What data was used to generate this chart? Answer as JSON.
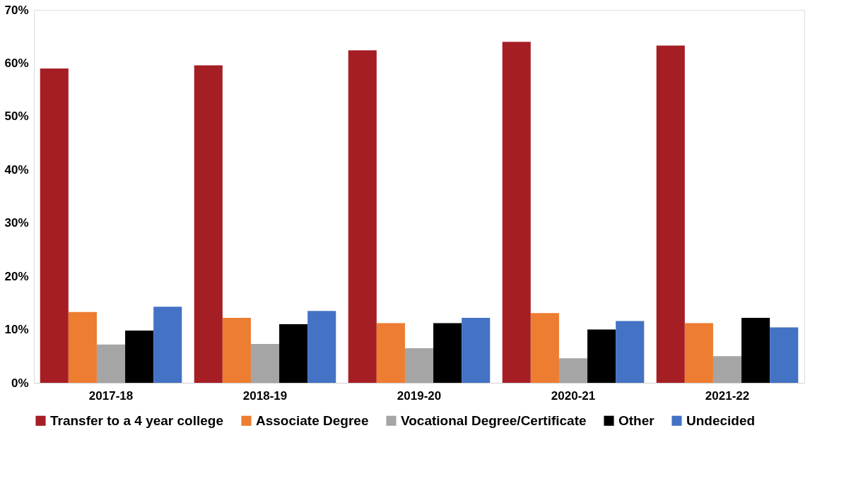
{
  "chart_data": {
    "type": "bar",
    "categories": [
      "2017-18",
      "2018-19",
      "2019-20",
      "2020-21",
      "2021-22"
    ],
    "series": [
      {
        "name": "Transfer to a 4 year college",
        "color": "#a51e24",
        "values": [
          59.0,
          59.6,
          62.4,
          64.0,
          63.3
        ]
      },
      {
        "name": "Associate Degree",
        "color": "#ed7d31",
        "values": [
          13.3,
          12.2,
          11.2,
          13.1,
          11.2
        ]
      },
      {
        "name": "Vocational Degree/Certificate",
        "color": "#a5a5a5",
        "values": [
          7.2,
          7.3,
          6.5,
          4.6,
          5.0
        ]
      },
      {
        "name": "Other",
        "color": "#000000",
        "values": [
          9.8,
          11.0,
          11.2,
          10.0,
          12.2
        ]
      },
      {
        "name": "Undecided",
        "color": "#4472c4",
        "values": [
          14.3,
          13.5,
          12.2,
          11.6,
          10.4
        ]
      }
    ],
    "ylim": [
      0,
      70
    ],
    "yticks": [
      {
        "value": 0,
        "label": "0%"
      },
      {
        "value": 10,
        "label": "10%"
      },
      {
        "value": 20,
        "label": "20%"
      },
      {
        "value": 30,
        "label": "30%"
      },
      {
        "value": 40,
        "label": "40%"
      },
      {
        "value": 50,
        "label": "50%"
      },
      {
        "value": 60,
        "label": "60%"
      },
      {
        "value": 70,
        "label": "70%"
      }
    ],
    "grid": false,
    "legend": "bottom"
  }
}
